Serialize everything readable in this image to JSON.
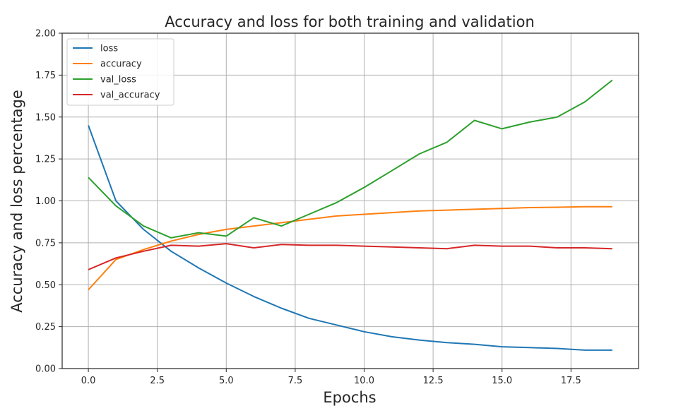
{
  "chart_data": {
    "type": "line",
    "title": "Accuracy and loss for both training and validation",
    "xlabel": "Epochs",
    "ylabel": "Accuracy and loss percentage",
    "xlim": [
      -0.95,
      19.95
    ],
    "ylim": [
      0,
      2
    ],
    "x_ticks": [
      "0.0",
      "2.5",
      "5.0",
      "7.5",
      "10.0",
      "12.5",
      "15.0",
      "17.5"
    ],
    "x_tick_values": [
      0,
      2.5,
      5,
      7.5,
      10,
      12.5,
      15,
      17.5
    ],
    "y_ticks": [
      "0.00",
      "0.25",
      "0.50",
      "0.75",
      "1.00",
      "1.25",
      "1.50",
      "1.75",
      "2.00"
    ],
    "y_tick_values": [
      0,
      0.25,
      0.5,
      0.75,
      1.0,
      1.25,
      1.5,
      1.75,
      2.0
    ],
    "grid": true,
    "legend_position": "top-left",
    "x": [
      0,
      1,
      2,
      3,
      4,
      5,
      6,
      7,
      8,
      9,
      10,
      11,
      12,
      13,
      14,
      15,
      16,
      17,
      18,
      19
    ],
    "series": [
      {
        "name": "loss",
        "color": "#1f77b4",
        "values": [
          1.45,
          1.0,
          0.83,
          0.7,
          0.6,
          0.51,
          0.43,
          0.36,
          0.3,
          0.26,
          0.22,
          0.19,
          0.17,
          0.155,
          0.145,
          0.13,
          0.125,
          0.12,
          0.11,
          0.11
        ]
      },
      {
        "name": "accuracy",
        "color": "#ff7f0e",
        "values": [
          0.47,
          0.65,
          0.71,
          0.76,
          0.8,
          0.83,
          0.85,
          0.87,
          0.89,
          0.91,
          0.92,
          0.93,
          0.94,
          0.945,
          0.95,
          0.955,
          0.96,
          0.962,
          0.965,
          0.965
        ]
      },
      {
        "name": "val_loss",
        "color": "#2ca02c",
        "values": [
          1.14,
          0.97,
          0.85,
          0.78,
          0.81,
          0.79,
          0.9,
          0.85,
          0.92,
          0.99,
          1.08,
          1.18,
          1.28,
          1.35,
          1.48,
          1.43,
          1.47,
          1.5,
          1.59,
          1.72
        ]
      },
      {
        "name": "val_accuracy",
        "color": "#d62728",
        "values": [
          0.59,
          0.66,
          0.7,
          0.735,
          0.73,
          0.745,
          0.72,
          0.74,
          0.735,
          0.735,
          0.73,
          0.725,
          0.72,
          0.715,
          0.735,
          0.73,
          0.73,
          0.72,
          0.72,
          0.715
        ]
      }
    ]
  }
}
